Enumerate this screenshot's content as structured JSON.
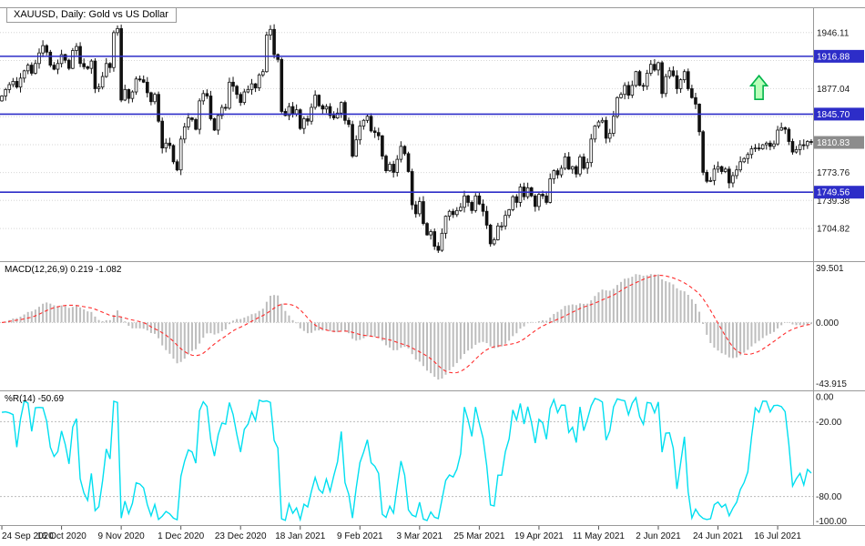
{
  "title": {
    "text": "XAUUSD, Daily:  Gold vs US Dollar"
  },
  "colors": {
    "level_line": "#2d2dc8",
    "level_badge_bg": "#2d2dc8",
    "current_badge_bg": "#8c8c8c",
    "candle": "#111111",
    "grid_dotted": "#d6d6d6",
    "axis_text": "#1a1a1a",
    "panel_border": "#999999",
    "date_text": "#111111"
  },
  "annotation": {
    "shape": "arrow-up",
    "bar_index": 203,
    "price": 1893,
    "fill": "#b9ffb9",
    "stroke": "#00b44a"
  },
  "chart_data": {
    "type": "candlestick",
    "symbol": "XAUUSD",
    "timeframe": "Daily",
    "description": "Gold vs US Dollar",
    "ylim": [
      1668,
      1975
    ],
    "closes": [
      1868,
      1876,
      1882,
      1886,
      1879,
      1890,
      1899,
      1906,
      1896,
      1908,
      1921,
      1930,
      1922,
      1906,
      1901,
      1908,
      1919,
      1912,
      1902,
      1924,
      1929,
      1908,
      1904,
      1902,
      1911,
      1877,
      1879,
      1892,
      1908,
      1903,
      1946,
      1951,
      1863,
      1876,
      1865,
      1873,
      1889,
      1888,
      1885,
      1872,
      1861,
      1870,
      1837,
      1804,
      1810,
      1807,
      1787,
      1777,
      1815,
      1830,
      1841,
      1839,
      1827,
      1862,
      1871,
      1868,
      1840,
      1826,
      1844,
      1854,
      1853,
      1885,
      1880,
      1870,
      1860,
      1873,
      1876,
      1883,
      1878,
      1894,
      1898,
      1943,
      1950,
      1919,
      1913,
      1849,
      1844,
      1855,
      1846,
      1851,
      1828,
      1840,
      1837,
      1854,
      1869,
      1856,
      1852,
      1855,
      1844,
      1841,
      1847,
      1860,
      1838,
      1833,
      1794,
      1814,
      1831,
      1838,
      1843,
      1825,
      1823,
      1819,
      1794,
      1776,
      1784,
      1774,
      1790,
      1806,
      1797,
      1775,
      1734,
      1723,
      1738,
      1711,
      1697,
      1701,
      1683,
      1678,
      1699,
      1720,
      1726,
      1722,
      1727,
      1731,
      1745,
      1737,
      1727,
      1745,
      1735,
      1726,
      1709,
      1686,
      1691,
      1708,
      1708,
      1721,
      1728,
      1744,
      1737,
      1756,
      1744,
      1755,
      1745,
      1732,
      1747,
      1745,
      1737,
      1766,
      1776,
      1771,
      1779,
      1793,
      1778,
      1781,
      1772,
      1793,
      1779,
      1786,
      1815,
      1831,
      1836,
      1838,
      1816,
      1822,
      1843,
      1866,
      1870,
      1881,
      1869,
      1881,
      1898,
      1881,
      1880,
      1896,
      1907,
      1900,
      1909,
      1871,
      1892,
      1899,
      1893,
      1877,
      1888,
      1898,
      1877,
      1866,
      1858,
      1824,
      1774,
      1763,
      1764,
      1778,
      1781,
      1775,
      1778,
      1761,
      1770,
      1777,
      1787,
      1791,
      1796,
      1803,
      1804,
      1803,
      1808,
      1810,
      1806,
      1809,
      1826,
      1829,
      1827,
      1812,
      1799,
      1802,
      1808,
      1807,
      1812,
      1810.83
    ],
    "price_grid": [
      {
        "price": 1946.11,
        "label": "1946.11"
      },
      {
        "price": 1911.64,
        "label": ""
      },
      {
        "price": 1877.04,
        "label": "1877.04"
      },
      {
        "price": 1842.57,
        "label": ""
      },
      {
        "price": 1808.1,
        "label": ""
      },
      {
        "price": 1773.76,
        "label": "1773.76"
      },
      {
        "price": 1739.38,
        "label": "1739.38"
      },
      {
        "price": 1704.82,
        "label": "1704.82"
      }
    ],
    "levels": [
      {
        "price": 1916.88,
        "label": "1916.88"
      },
      {
        "price": 1845.7,
        "label": "1845.70"
      },
      {
        "price": 1749.56,
        "label": "1749.56"
      }
    ],
    "current_price": {
      "price": 1810.83,
      "label": "1810.83"
    },
    "x_labels": [
      "24 Sep 2020",
      "16 Oct 2020",
      "9 Nov 2020",
      "1 Dec 2020",
      "23 Dec 2020",
      "18 Jan 2021",
      "9 Feb 2021",
      "3 Mar 2021",
      "25 Mar 2021",
      "19 Apr 2021",
      "11 May 2021",
      "2 Jun 2021",
      "24 Jun 2021",
      "16 Jul 2021"
    ],
    "x_label_bar_indices": [
      0,
      16,
      32,
      48,
      64,
      80,
      96,
      112,
      128,
      144,
      160,
      176,
      192,
      208
    ],
    "indicators": [
      {
        "name": "MACD",
        "label": "MACD(12,26,9) 0.219 -1.082",
        "params": [
          12,
          26,
          9
        ],
        "current_values": [
          0.219,
          -1.082
        ],
        "ylim": [
          -43.915,
          39.501
        ],
        "axis_ticks": [
          {
            "value": 39.501,
            "label": "39.501"
          },
          {
            "value": 0,
            "label": "0.000"
          },
          {
            "value": -43.915,
            "label": "-43.915"
          }
        ],
        "histogram_color": "#bdbdbd",
        "signal_color": "#ff2b2b"
      },
      {
        "name": "WPR",
        "label": "%R(14) -50.69",
        "params": [
          14
        ],
        "current_value": -50.69,
        "ylim": [
          -100,
          0
        ],
        "axis_ticks": [
          {
            "value": 0,
            "label": "0.00"
          },
          {
            "value": -20,
            "label": "-20.00"
          },
          {
            "value": -80,
            "label": "-80.00"
          },
          {
            "value": -100,
            "label": "-100.00"
          }
        ],
        "line_color": "#00dff0",
        "guide_levels": [
          -20,
          -80
        ]
      }
    ]
  }
}
